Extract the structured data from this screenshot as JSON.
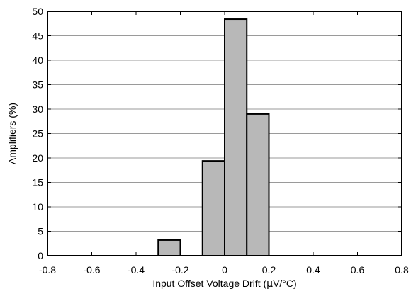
{
  "chart_data": {
    "type": "bar",
    "subtype": "histogram",
    "title": "",
    "xlabel_prefix": "Input Offset Voltage Drift (",
    "xlabel_mu": "μ",
    "xlabel_suffix": "V/°C)",
    "xlabel": "Input Offset Voltage Drift (μV/°C)",
    "ylabel": "Amplifiers (%)",
    "xlim": [
      -0.8,
      0.8
    ],
    "ylim": [
      0,
      50
    ],
    "x_ticks": [
      -0.8,
      -0.6,
      -0.4,
      -0.2,
      0,
      0.2,
      0.4,
      0.6,
      0.8
    ],
    "x_tick_labels": [
      "-0.8",
      "-0.6",
      "-0.4",
      "-0.2",
      "0",
      "0.2",
      "0.4",
      "0.6",
      "0.8"
    ],
    "y_ticks": [
      0,
      5,
      10,
      15,
      20,
      25,
      30,
      35,
      40,
      45,
      50
    ],
    "y_tick_labels": [
      "0",
      "5",
      "10",
      "15",
      "20",
      "25",
      "30",
      "35",
      "40",
      "45",
      "50"
    ],
    "grid": "horizontal",
    "bars": [
      {
        "x0": -0.3,
        "x1": -0.2,
        "value": 3.2
      },
      {
        "x0": -0.1,
        "x1": 0.0,
        "value": 19.4
      },
      {
        "x0": 0.0,
        "x1": 0.1,
        "value": 48.4
      },
      {
        "x0": 0.1,
        "x1": 0.2,
        "value": 29.0
      }
    ],
    "colors": {
      "bar_fill": "#b8b8b8",
      "bar_stroke": "#000000",
      "grid": "#9a9a9a",
      "frame": "#000000"
    }
  }
}
